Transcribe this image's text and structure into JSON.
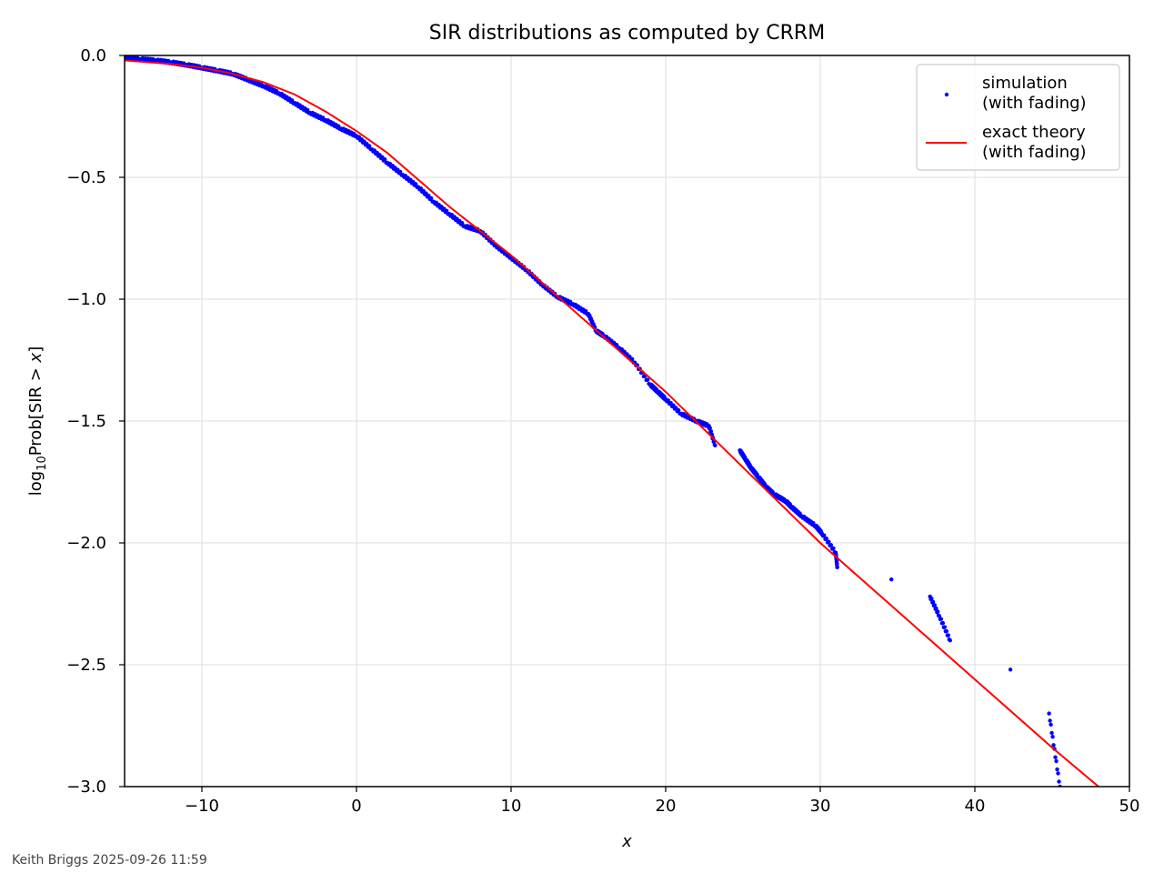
{
  "chart_data": {
    "type": "scatter",
    "title": "SIR distributions as computed by CRRM",
    "xlabel": "x",
    "ylabel": "log₁₀Prob[SIR > x]",
    "ylabel_parts": {
      "pre": "log",
      "sub": "10",
      "mid": "Prob[SIR > ",
      "var": "x",
      "post": "]"
    },
    "xlim": [
      -15,
      50
    ],
    "ylim": [
      -3.0,
      0.0
    ],
    "xticks": [
      -10,
      0,
      10,
      20,
      30,
      40,
      50
    ],
    "xtick_labels": [
      "−10",
      "0",
      "10",
      "20",
      "30",
      "40",
      "50"
    ],
    "yticks": [
      0.0,
      -0.5,
      -1.0,
      -1.5,
      -2.0,
      -2.5,
      -3.0
    ],
    "ytick_labels": [
      "0.0",
      "−0.5",
      "−1.0",
      "−1.5",
      "−2.0",
      "−2.5",
      "−3.0"
    ],
    "grid": true,
    "legend_position": "top-right",
    "series": [
      {
        "name": "simulation\n(with fading)",
        "kind": "scatter",
        "color": "#0000ff",
        "x": [
          -15,
          -14,
          -13,
          -12,
          -11,
          -10,
          -9,
          -8,
          -7,
          -6,
          -5,
          -4,
          -3,
          -2,
          -1,
          0,
          1,
          2,
          3,
          4,
          5,
          6,
          7,
          8,
          9,
          10,
          11,
          12,
          13,
          14,
          15,
          15.5,
          16,
          17,
          18,
          19,
          19.5,
          20,
          21,
          22,
          22.8,
          23.2,
          24.8,
          25.2,
          25.5,
          26,
          26.5,
          27,
          27.8,
          28.1,
          28.8,
          29.7,
          30.1,
          31,
          31.1,
          34.6,
          37.1,
          37.7,
          38.4,
          42.3,
          44.8,
          45.5
        ],
        "y": [
          -0.01,
          -0.015,
          -0.02,
          -0.028,
          -0.038,
          -0.05,
          -0.062,
          -0.075,
          -0.1,
          -0.125,
          -0.155,
          -0.195,
          -0.235,
          -0.265,
          -0.3,
          -0.33,
          -0.385,
          -0.44,
          -0.49,
          -0.54,
          -0.6,
          -0.65,
          -0.7,
          -0.72,
          -0.78,
          -0.83,
          -0.88,
          -0.94,
          -0.99,
          -1.02,
          -1.06,
          -1.13,
          -1.15,
          -1.2,
          -1.26,
          -1.35,
          -1.38,
          -1.41,
          -1.47,
          -1.5,
          -1.52,
          -1.6,
          -1.62,
          -1.66,
          -1.69,
          -1.73,
          -1.77,
          -1.8,
          -1.83,
          -1.85,
          -1.89,
          -1.93,
          -1.96,
          -2.04,
          -2.1,
          -2.15,
          -2.22,
          -2.3,
          -2.4,
          -2.52,
          -2.7,
          -3.0
        ]
      },
      {
        "name": "exact theory\n(with fading)",
        "kind": "line",
        "color": "#ff0000",
        "x": [
          -15,
          -12,
          -10,
          -8,
          -6,
          -4,
          -2,
          0,
          2,
          4,
          6,
          8,
          10,
          15,
          20,
          25,
          30,
          35,
          40,
          45,
          48
        ],
        "y": [
          -0.02,
          -0.035,
          -0.05,
          -0.075,
          -0.11,
          -0.16,
          -0.23,
          -0.31,
          -0.4,
          -0.51,
          -0.62,
          -0.72,
          -0.82,
          -1.1,
          -1.38,
          -1.69,
          -2.0,
          -2.28,
          -2.56,
          -2.84,
          -3.0
        ]
      }
    ]
  },
  "footer": {
    "text": "Keith Briggs 2025-09-26 11:59"
  }
}
